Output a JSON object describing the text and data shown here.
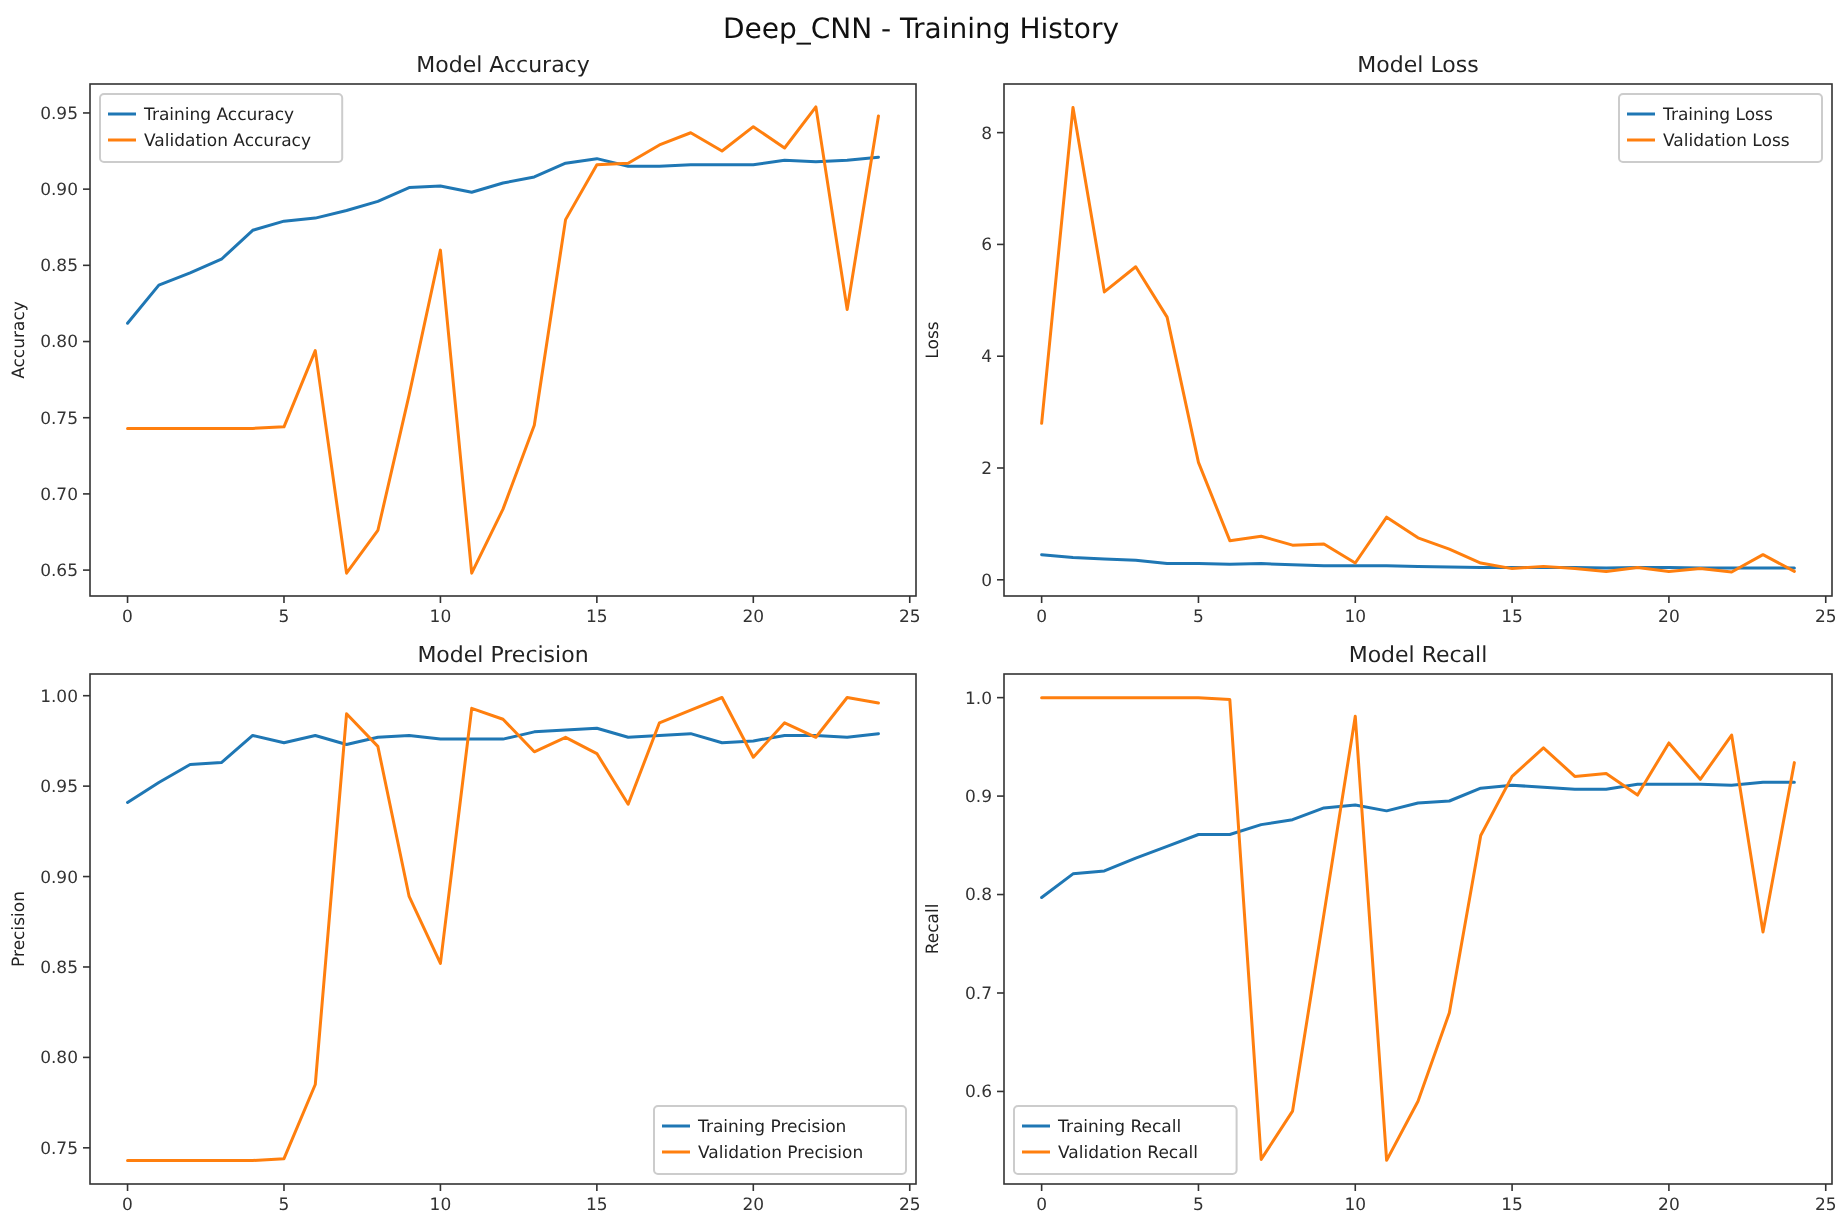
{
  "chart_data": [
    {
      "type": "other",
      "title": "Deep_CNN - Training History"
    },
    {
      "type": "line",
      "title": "Model Accuracy",
      "ylabel": "Accuracy",
      "x": [
        0,
        1,
        2,
        3,
        4,
        5,
        6,
        7,
        8,
        9,
        10,
        11,
        12,
        13,
        14,
        15,
        16,
        17,
        18,
        19,
        20,
        21,
        22,
        23,
        24
      ],
      "xlim": [
        -1.2,
        25.2
      ],
      "xticks": [
        0,
        5,
        10,
        15,
        20,
        25
      ],
      "ylim": [
        0.633,
        0.969
      ],
      "yticks": [
        {
          "value": 0.65,
          "label": "0.65"
        },
        {
          "value": 0.7,
          "label": "0.70"
        },
        {
          "value": 0.75,
          "label": "0.75"
        },
        {
          "value": 0.8,
          "label": "0.80"
        },
        {
          "value": 0.85,
          "label": "0.85"
        },
        {
          "value": 0.9,
          "label": "0.90"
        },
        {
          "value": 0.95,
          "label": "0.95"
        }
      ],
      "legend": "top left",
      "series": [
        {
          "name": "Training Accuracy",
          "color": "#1f77b4",
          "values": [
            0.812,
            0.837,
            0.845,
            0.854,
            0.873,
            0.879,
            0.881,
            0.886,
            0.892,
            0.901,
            0.902,
            0.898,
            0.904,
            0.908,
            0.917,
            0.92,
            0.915,
            0.915,
            0.916,
            0.916,
            0.916,
            0.919,
            0.918,
            0.919,
            0.921
          ]
        },
        {
          "name": "Validation Accuracy",
          "color": "#ff7f0e",
          "values": [
            0.743,
            0.743,
            0.743,
            0.743,
            0.743,
            0.744,
            0.794,
            0.648,
            0.676,
            0.765,
            0.86,
            0.648,
            0.69,
            0.745,
            0.88,
            0.916,
            0.917,
            0.929,
            0.937,
            0.925,
            0.941,
            0.927,
            0.954,
            0.821,
            0.948
          ]
        }
      ]
    },
    {
      "type": "line",
      "title": "Model Loss",
      "ylabel": "Loss",
      "x": [
        0,
        1,
        2,
        3,
        4,
        5,
        6,
        7,
        8,
        9,
        10,
        11,
        12,
        13,
        14,
        15,
        16,
        17,
        18,
        19,
        20,
        21,
        22,
        23,
        24
      ],
      "xlim": [
        -1.2,
        25.2
      ],
      "xticks": [
        0,
        5,
        10,
        15,
        20,
        25
      ],
      "ylim": [
        -0.29,
        8.87
      ],
      "yticks": [
        0,
        2,
        4,
        6,
        8
      ],
      "legend": "top right",
      "series": [
        {
          "name": "Training Loss",
          "color": "#1f77b4",
          "values": [
            0.45,
            0.4,
            0.37,
            0.35,
            0.29,
            0.29,
            0.28,
            0.29,
            0.27,
            0.25,
            0.25,
            0.25,
            0.24,
            0.23,
            0.22,
            0.22,
            0.22,
            0.22,
            0.21,
            0.22,
            0.22,
            0.21,
            0.21,
            0.21,
            0.21
          ]
        },
        {
          "name": "Validation Loss",
          "color": "#ff7f0e",
          "values": [
            2.8,
            8.45,
            5.15,
            5.6,
            4.7,
            2.1,
            0.7,
            0.78,
            0.62,
            0.64,
            0.3,
            1.12,
            0.75,
            0.55,
            0.3,
            0.2,
            0.24,
            0.2,
            0.15,
            0.22,
            0.15,
            0.2,
            0.14,
            0.45,
            0.15
          ]
        }
      ]
    },
    {
      "type": "line",
      "title": "Model Precision",
      "ylabel": "Precision",
      "x": [
        0,
        1,
        2,
        3,
        4,
        5,
        6,
        7,
        8,
        9,
        10,
        11,
        12,
        13,
        14,
        15,
        16,
        17,
        18,
        19,
        20,
        21,
        22,
        23,
        24
      ],
      "xlim": [
        -1.2,
        25.2
      ],
      "xticks": [
        0,
        5,
        10,
        15,
        20,
        25
      ],
      "ylim": [
        0.73,
        1.012
      ],
      "yticks": [
        {
          "value": 0.75,
          "label": "0.75"
        },
        {
          "value": 0.8,
          "label": "0.80"
        },
        {
          "value": 0.85,
          "label": "0.85"
        },
        {
          "value": 0.9,
          "label": "0.90"
        },
        {
          "value": 0.95,
          "label": "0.95"
        },
        {
          "value": 1,
          "label": "1.00"
        }
      ],
      "legend": "bottom right",
      "series": [
        {
          "name": "Training Precision",
          "color": "#1f77b4",
          "values": [
            0.941,
            0.952,
            0.962,
            0.963,
            0.978,
            0.974,
            0.978,
            0.973,
            0.977,
            0.978,
            0.976,
            0.976,
            0.976,
            0.98,
            0.981,
            0.982,
            0.977,
            0.978,
            0.979,
            0.974,
            0.975,
            0.978,
            0.978,
            0.977,
            0.979
          ]
        },
        {
          "name": "Validation Precision",
          "color": "#ff7f0e",
          "values": [
            0.743,
            0.743,
            0.743,
            0.743,
            0.743,
            0.744,
            0.785,
            0.99,
            0.972,
            0.889,
            0.852,
            0.993,
            0.987,
            0.969,
            0.977,
            0.968,
            0.94,
            0.985,
            0.992,
            0.999,
            0.966,
            0.985,
            0.977,
            0.999,
            0.996
          ]
        }
      ]
    },
    {
      "type": "line",
      "title": "Model Recall",
      "ylabel": "Recall",
      "x": [
        0,
        1,
        2,
        3,
        4,
        5,
        6,
        7,
        8,
        9,
        10,
        11,
        12,
        13,
        14,
        15,
        16,
        17,
        18,
        19,
        20,
        21,
        22,
        23,
        24
      ],
      "xlim": [
        -1.2,
        25.2
      ],
      "xticks": [
        0,
        5,
        10,
        15,
        20,
        25
      ],
      "ylim": [
        0.506,
        1.024
      ],
      "yticks": [
        {
          "value": 0.6,
          "label": "0.6"
        },
        {
          "value": 0.7,
          "label": "0.7"
        },
        {
          "value": 0.8,
          "label": "0.8"
        },
        {
          "value": 0.9,
          "label": "0.9"
        },
        {
          "value": 1,
          "label": "1.0"
        }
      ],
      "legend": "bottom left",
      "series": [
        {
          "name": "Training Recall",
          "color": "#1f77b4",
          "values": [
            0.797,
            0.821,
            0.824,
            0.837,
            0.849,
            0.861,
            0.861,
            0.871,
            0.876,
            0.888,
            0.891,
            0.885,
            0.893,
            0.895,
            0.908,
            0.911,
            0.909,
            0.907,
            0.907,
            0.912,
            0.912,
            0.912,
            0.911,
            0.914,
            0.914
          ]
        },
        {
          "name": "Validation Recall",
          "color": "#ff7f0e",
          "values": [
            1.0,
            1.0,
            1.0,
            1.0,
            1.0,
            1.0,
            0.998,
            0.531,
            0.58,
            0.78,
            0.981,
            0.53,
            0.59,
            0.68,
            0.86,
            0.92,
            0.949,
            0.92,
            0.923,
            0.901,
            0.954,
            0.917,
            0.962,
            0.762,
            0.934
          ]
        }
      ]
    }
  ]
}
